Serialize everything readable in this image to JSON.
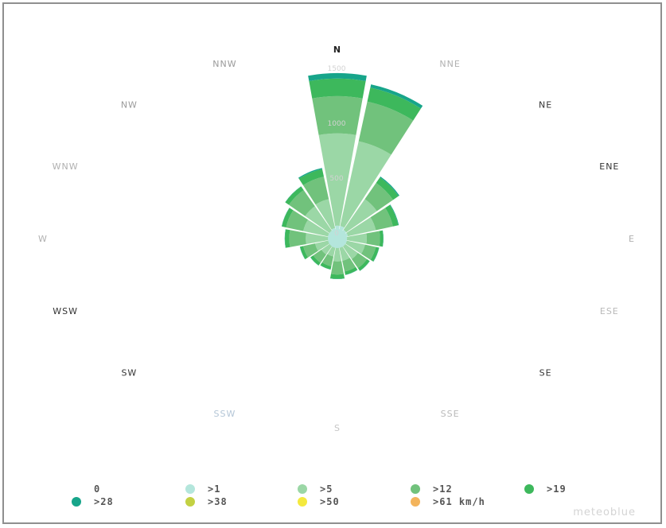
{
  "chart_data": {
    "type": "wind-rose",
    "directions": [
      "N",
      "NNE",
      "NE",
      "ENE",
      "E",
      "ESE",
      "SE",
      "SSE",
      "S",
      "SSW",
      "SW",
      "WSW",
      "W",
      "WNW",
      "NW",
      "NNW"
    ],
    "radial_ticks": [
      "1500",
      "1000",
      "500",
      "0"
    ],
    "radial_max": 1500,
    "categories": [
      {
        "label": "0",
        "color": "#b9e9e3"
      },
      {
        "label": ">1",
        "color": "#b4e6dc"
      },
      {
        "label": ">5",
        "color": "#9bd7a6"
      },
      {
        "label": ">12",
        "color": "#71c27c"
      },
      {
        "label": ">19",
        "color": "#3db85c"
      },
      {
        "label": ">28",
        "color": "#17a58a"
      },
      {
        "label": ">38",
        "color": "#c3d143"
      },
      {
        "label": ">50",
        "color": "#f4e93e"
      },
      {
        "label": ">61 km/h",
        "color": "#f3b45c"
      }
    ],
    "cumulative_by_direction": [
      [
        0,
        60,
        900,
        1240,
        1400,
        1450,
        1450,
        1450,
        1450
      ],
      [
        0,
        60,
        850,
        1220,
        1350,
        1380,
        1380,
        1380,
        1380
      ],
      [
        0,
        40,
        380,
        560,
        620,
        630,
        630,
        630,
        630
      ],
      [
        0,
        40,
        300,
        460,
        510,
        515,
        515,
        515,
        515
      ],
      [
        0,
        30,
        210,
        330,
        360,
        362,
        362,
        362,
        362
      ],
      [
        0,
        30,
        200,
        300,
        330,
        332,
        332,
        332,
        332
      ],
      [
        0,
        30,
        170,
        270,
        300,
        302,
        302,
        302,
        302
      ],
      [
        0,
        20,
        150,
        250,
        280,
        282,
        282,
        282,
        282
      ],
      [
        0,
        20,
        150,
        270,
        310,
        312,
        312,
        312,
        312
      ],
      [
        0,
        20,
        110,
        200,
        230,
        232,
        232,
        232,
        232
      ],
      [
        0,
        20,
        120,
        210,
        240,
        242,
        242,
        242,
        242
      ],
      [
        0,
        20,
        150,
        260,
        290,
        292,
        292,
        292,
        292
      ],
      [
        0,
        20,
        230,
        380,
        420,
        422,
        422,
        422,
        422
      ],
      [
        0,
        30,
        260,
        420,
        460,
        462,
        462,
        462,
        462
      ],
      [
        0,
        30,
        300,
        480,
        520,
        522,
        522,
        522,
        522
      ],
      [
        0,
        40,
        310,
        520,
        590,
        600,
        600,
        600,
        600
      ]
    ]
  },
  "credit": "meteoblue"
}
